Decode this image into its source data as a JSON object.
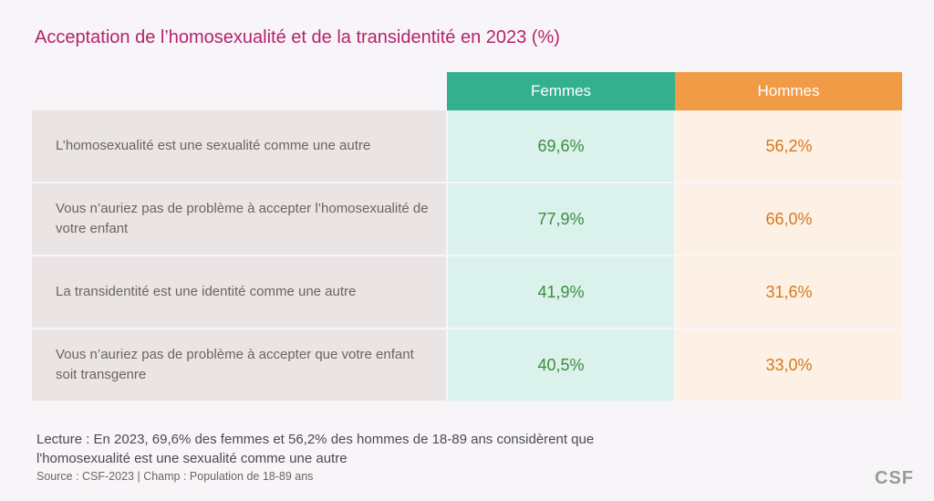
{
  "title": "Acceptation de l’homosexualité et de la transidentité en 2023 (%)",
  "chart_data": {
    "type": "table",
    "title": "Acceptation de l’homosexualité et de la transidentité en 2023 (%)",
    "columns": [
      "Femmes",
      "Hommes"
    ],
    "colors": {
      "Femmes": "#35b08e",
      "Hommes": "#f19b47",
      "title": "#b5226d"
    },
    "rows": [
      {
        "label": "L’homosexualité est une sexualité comme une autre",
        "femmes": "69,6%",
        "hommes": "56,2%"
      },
      {
        "label": "Vous n’auriez pas de problème à accepter l’homosexualité de votre enfant",
        "femmes": "77,9%",
        "hommes": "66,0%"
      },
      {
        "label": "La transidentité est une identité comme une autre",
        "femmes": "41,9%",
        "hommes": "31,6%"
      },
      {
        "label": "Vous n’auriez pas de problème à accepter que votre enfant soit transgenre",
        "femmes": "40,5%",
        "hommes": "33,0%"
      }
    ]
  },
  "note": "Lecture : En 2023, 69,6% des femmes et 56,2% des hommes de 18-89 ans considèrent que l'homosexualité est une sexualité comme une autre",
  "source": "Source : CSF-2023 | Champ : Population de 18-89 ans",
  "logo": "CSF"
}
